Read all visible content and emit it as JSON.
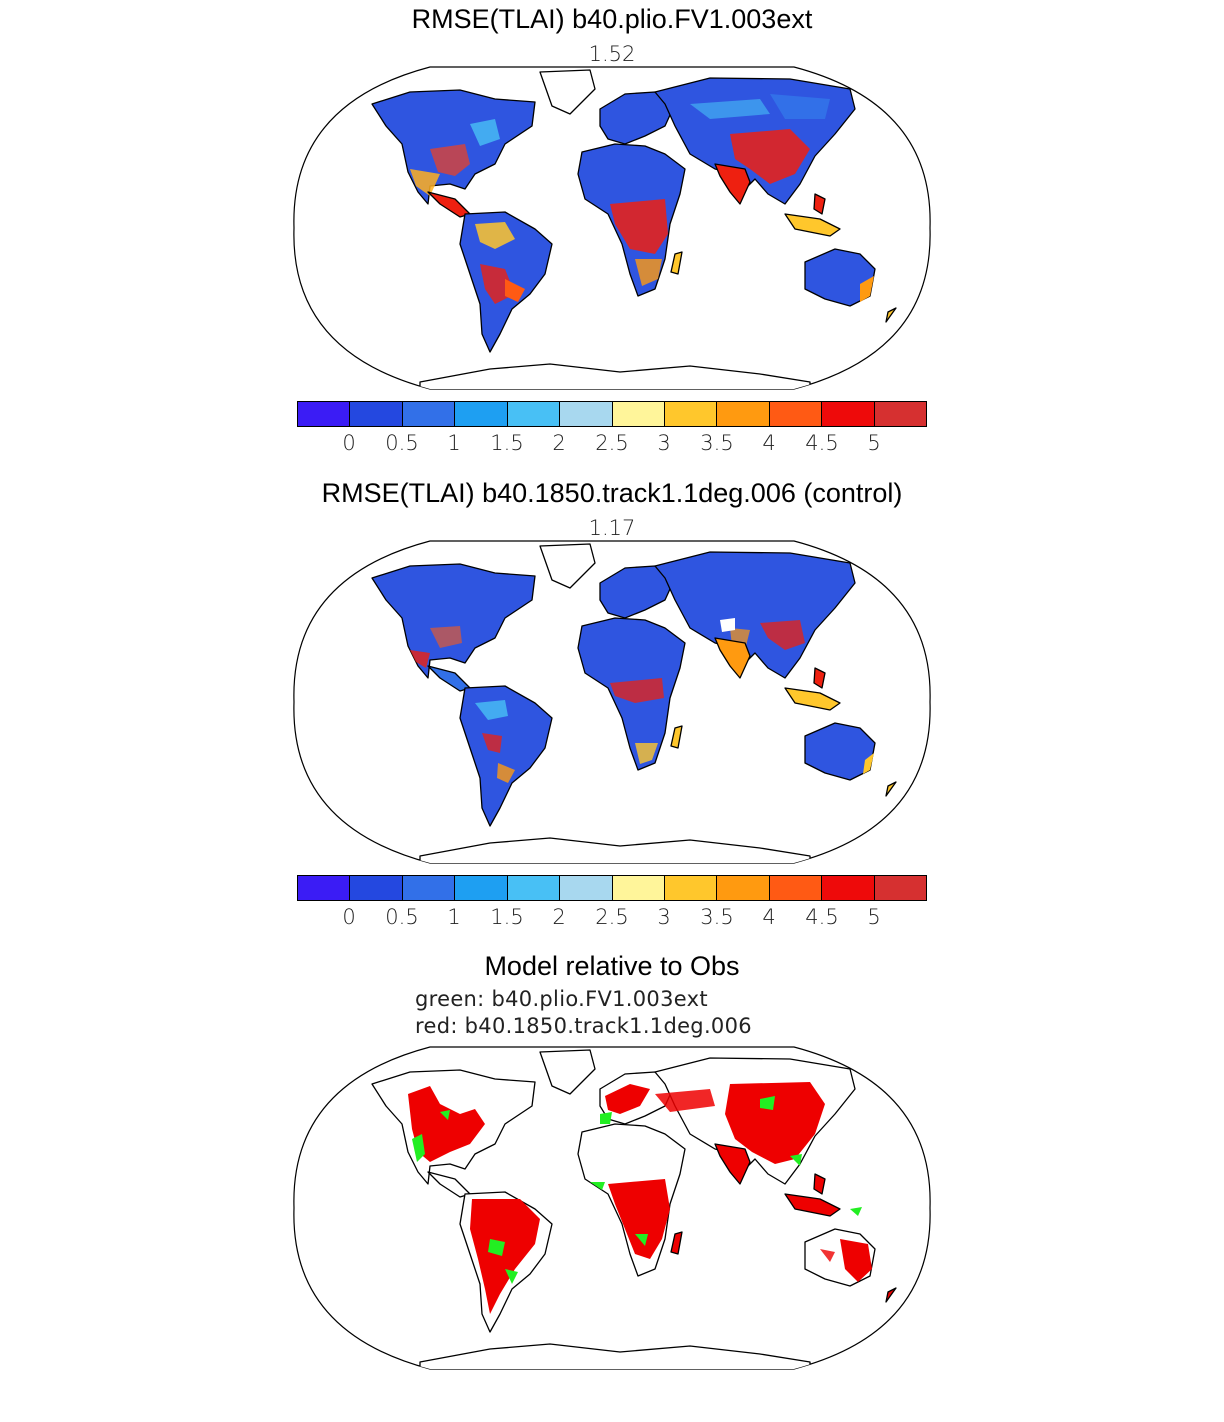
{
  "panels": [
    {
      "title": "RMSE(TLAI) b40.plio.FV1.003ext",
      "value_label": "1.52"
    },
    {
      "title": "RMSE(TLAI) b40.1850.track1.1deg.006 (control)",
      "value_label": "1.17"
    }
  ],
  "comparison": {
    "title": "Model relative to Obs",
    "legend_green": "green: b40.plio.FV1.003ext",
    "legend_red": "red: b40.1850.track1.1deg.006",
    "colors": {
      "green": "#22ee22",
      "red": "#ee0000"
    }
  },
  "colorbar": {
    "colors": [
      "#3b1cf5",
      "#2448e0",
      "#3270e8",
      "#1e9ff2",
      "#48c0f5",
      "#a8d8ef",
      "#fff59a",
      "#ffc72c",
      "#ff9a10",
      "#ff5a14",
      "#ee0a0a",
      "#d63030"
    ],
    "tick_labels": [
      "0",
      "0.5",
      "1",
      "1.5",
      "2",
      "2.5",
      "3",
      "3.5",
      "4",
      "4.5",
      "5"
    ]
  },
  "map_colors": {
    "land_low": "#2f55e0",
    "land_mid": "#48c0f5",
    "land_high": "#ee2010",
    "ocean": "#ffffff"
  }
}
